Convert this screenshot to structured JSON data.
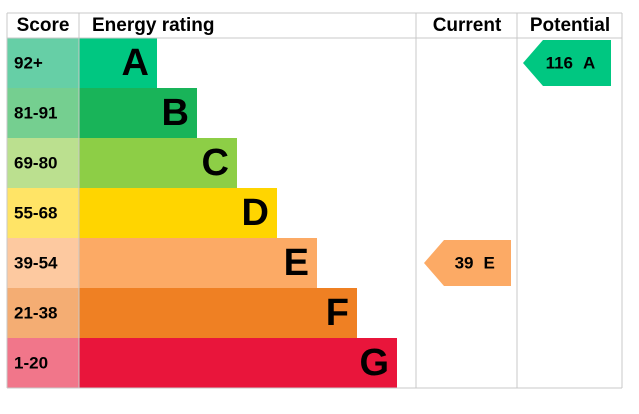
{
  "header": {
    "score": "Score",
    "rating": "Energy rating",
    "current": "Current",
    "potential": "Potential"
  },
  "rows": [
    {
      "score": "92+",
      "letter": "A",
      "color": "#00c781",
      "light": "#66cfa6"
    },
    {
      "score": "81-91",
      "letter": "B",
      "color": "#19b459",
      "light": "#75cf90"
    },
    {
      "score": "69-80",
      "letter": "C",
      "color": "#8dce46",
      "light": "#bbe08f"
    },
    {
      "score": "55-68",
      "letter": "D",
      "color": "#ffd500",
      "light": "#ffe466"
    },
    {
      "score": "39-54",
      "letter": "E",
      "color": "#fcaa65",
      "light": "#fdc9a0"
    },
    {
      "score": "21-38",
      "letter": "F",
      "color": "#ef8023",
      "light": "#f4ad73"
    },
    {
      "score": "1-20",
      "letter": "G",
      "color": "#e9153b",
      "light": "#f1768a"
    }
  ],
  "current": {
    "value": "39",
    "letter": "E"
  },
  "potential": {
    "value": "116",
    "letter": "A"
  }
}
